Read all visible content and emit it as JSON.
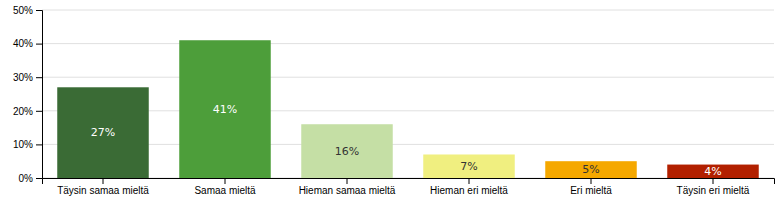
{
  "chart_data": {
    "type": "bar",
    "categories": [
      "Täysin samaa mieltä",
      "Samaa mieltä",
      "Hieman samaa mieltä",
      "Hieman eri mieltä",
      "Eri mieltä",
      "Täysin eri mieltä"
    ],
    "values": [
      27,
      41,
      16,
      7,
      5,
      4
    ],
    "value_labels": [
      "27%",
      "41%",
      "16%",
      "7%",
      "5%",
      "4%"
    ],
    "colors": [
      "#3a6b35",
      "#4d9e3a",
      "#c5dfa5",
      "#f0ef80",
      "#f5a800",
      "#b22000"
    ],
    "ylim": [
      0,
      50
    ],
    "yticks": [
      {
        "value": 0,
        "label": "0%"
      },
      {
        "value": 10,
        "label": "10%"
      },
      {
        "value": 20,
        "label": "20%"
      },
      {
        "value": 30,
        "label": "30%"
      },
      {
        "value": 40,
        "label": "40%"
      },
      {
        "value": 50,
        "label": "50%"
      }
    ],
    "grid": true,
    "data_labels": true
  }
}
